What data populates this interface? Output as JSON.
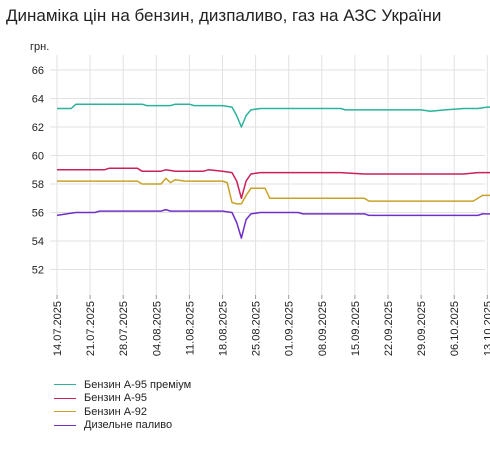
{
  "title": "Динаміка цін на бензин, дизпаливо, газ на АЗС України",
  "chart_data": {
    "type": "line",
    "title": "Динаміка цін на бензин, дизпаливо, газ на АЗС України",
    "ylabel": "грн.",
    "ylim": [
      52,
      66
    ],
    "yticks": [
      52,
      54,
      56,
      58,
      60,
      62,
      64,
      66
    ],
    "grid": true,
    "legend_position": "bottom-left",
    "xlim": [
      "2025-07-14",
      "2025-10-14"
    ],
    "x_tick_labels": [
      "14.07.2025",
      "21.07.2025",
      "28.07.2025",
      "04.08.2025",
      "11.08.2025",
      "18.08.2025",
      "25.08.2025",
      "01.09.2025",
      "08.09.2025",
      "15.09.2025",
      "22.09.2025",
      "29.09.2025",
      "06.10.2025",
      "13.10.2025"
    ],
    "series": [
      {
        "name": "Бензин А-95 преміум",
        "color": "#2bb39b",
        "points": [
          [
            "2025-07-14",
            63.3
          ],
          [
            "2025-07-17",
            63.3
          ],
          [
            "2025-07-18",
            63.6
          ],
          [
            "2025-07-25",
            63.6
          ],
          [
            "2025-08-01",
            63.6
          ],
          [
            "2025-08-02",
            63.5
          ],
          [
            "2025-08-07",
            63.5
          ],
          [
            "2025-08-08",
            63.6
          ],
          [
            "2025-08-11",
            63.6
          ],
          [
            "2025-08-12",
            63.5
          ],
          [
            "2025-08-18",
            63.5
          ],
          [
            "2025-08-20",
            63.4
          ],
          [
            "2025-08-21",
            62.8
          ],
          [
            "2025-08-22",
            62.0
          ],
          [
            "2025-08-23",
            62.8
          ],
          [
            "2025-08-24",
            63.2
          ],
          [
            "2025-08-26",
            63.3
          ],
          [
            "2025-09-05",
            63.3
          ],
          [
            "2025-09-12",
            63.3
          ],
          [
            "2025-09-13",
            63.2
          ],
          [
            "2025-09-20",
            63.2
          ],
          [
            "2025-09-29",
            63.2
          ],
          [
            "2025-10-01",
            63.1
          ],
          [
            "2025-10-04",
            63.2
          ],
          [
            "2025-10-08",
            63.3
          ],
          [
            "2025-10-11",
            63.3
          ],
          [
            "2025-10-13",
            63.4
          ],
          [
            "2025-10-14",
            63.4
          ]
        ]
      },
      {
        "name": "Бензин А-95",
        "color": "#cc1f5c",
        "points": [
          [
            "2025-07-14",
            59.0
          ],
          [
            "2025-07-24",
            59.0
          ],
          [
            "2025-07-25",
            59.1
          ],
          [
            "2025-07-31",
            59.1
          ],
          [
            "2025-08-01",
            58.9
          ],
          [
            "2025-08-05",
            58.9
          ],
          [
            "2025-08-06",
            59.0
          ],
          [
            "2025-08-08",
            58.9
          ],
          [
            "2025-08-14",
            58.9
          ],
          [
            "2025-08-15",
            59.0
          ],
          [
            "2025-08-18",
            58.9
          ],
          [
            "2025-08-20",
            58.8
          ],
          [
            "2025-08-21",
            58.2
          ],
          [
            "2025-08-22",
            57.0
          ],
          [
            "2025-08-23",
            58.2
          ],
          [
            "2025-08-24",
            58.7
          ],
          [
            "2025-08-26",
            58.8
          ],
          [
            "2025-09-05",
            58.8
          ],
          [
            "2025-09-12",
            58.8
          ],
          [
            "2025-09-17",
            58.7
          ],
          [
            "2025-10-01",
            58.7
          ],
          [
            "2025-10-08",
            58.7
          ],
          [
            "2025-10-11",
            58.8
          ],
          [
            "2025-10-14",
            58.8
          ]
        ]
      },
      {
        "name": "Бензин А-92",
        "color": "#c9a227",
        "points": [
          [
            "2025-07-14",
            58.2
          ],
          [
            "2025-07-31",
            58.2
          ],
          [
            "2025-08-01",
            58.0
          ],
          [
            "2025-08-05",
            58.0
          ],
          [
            "2025-08-06",
            58.4
          ],
          [
            "2025-08-07",
            58.1
          ],
          [
            "2025-08-08",
            58.3
          ],
          [
            "2025-08-10",
            58.2
          ],
          [
            "2025-08-18",
            58.2
          ],
          [
            "2025-08-19",
            58.1
          ],
          [
            "2025-08-20",
            56.7
          ],
          [
            "2025-08-21",
            56.6
          ],
          [
            "2025-08-22",
            56.6
          ],
          [
            "2025-08-23",
            57.2
          ],
          [
            "2025-08-24",
            57.7
          ],
          [
            "2025-08-27",
            57.7
          ],
          [
            "2025-08-28",
            57.0
          ],
          [
            "2025-09-05",
            57.0
          ],
          [
            "2025-09-17",
            57.0
          ],
          [
            "2025-09-18",
            56.8
          ],
          [
            "2025-09-29",
            56.8
          ],
          [
            "2025-10-10",
            56.8
          ],
          [
            "2025-10-12",
            57.2
          ],
          [
            "2025-10-14",
            57.2
          ]
        ]
      },
      {
        "name": "Дизельне паливо",
        "color": "#7030c8",
        "points": [
          [
            "2025-07-14",
            55.8
          ],
          [
            "2025-07-16",
            55.9
          ],
          [
            "2025-07-18",
            56.0
          ],
          [
            "2025-07-22",
            56.0
          ],
          [
            "2025-07-23",
            56.1
          ],
          [
            "2025-08-05",
            56.1
          ],
          [
            "2025-08-06",
            56.2
          ],
          [
            "2025-08-07",
            56.1
          ],
          [
            "2025-08-18",
            56.1
          ],
          [
            "2025-08-20",
            56.0
          ],
          [
            "2025-08-21",
            55.3
          ],
          [
            "2025-08-22",
            54.2
          ],
          [
            "2025-08-23",
            55.5
          ],
          [
            "2025-08-24",
            55.9
          ],
          [
            "2025-08-26",
            56.0
          ],
          [
            "2025-09-03",
            56.0
          ],
          [
            "2025-09-04",
            55.9
          ],
          [
            "2025-09-17",
            55.9
          ],
          [
            "2025-09-18",
            55.8
          ],
          [
            "2025-10-11",
            55.8
          ],
          [
            "2025-10-12",
            55.9
          ],
          [
            "2025-10-14",
            55.9
          ]
        ]
      }
    ]
  }
}
